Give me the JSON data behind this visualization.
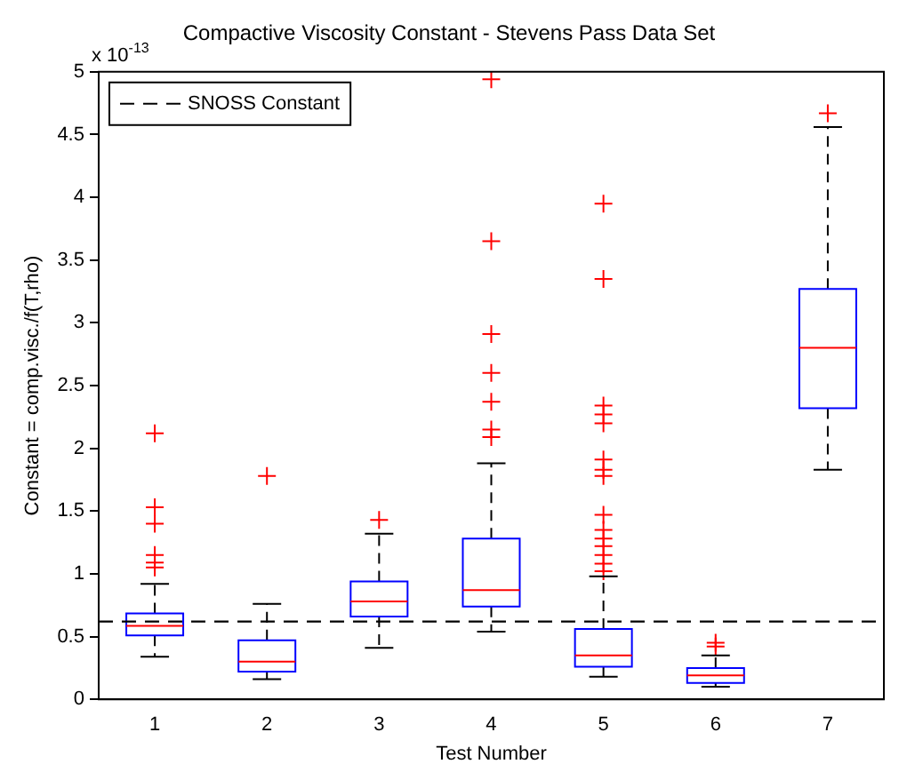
{
  "chart_data": {
    "type": "box",
    "title": "Compactive Viscosity Constant - Stevens Pass Data Set",
    "xlabel": "Test Number",
    "ylabel": "Constant = comp.visc./f(T,rho)",
    "annotations": [
      "x 10$^{-13}$"
    ],
    "categories": [
      "1",
      "2",
      "3",
      "4",
      "5",
      "6",
      "7"
    ],
    "series": [
      {
        "color": "#0000ff",
        "boxes": [
          {
            "low": 0.34,
            "q1": 0.51,
            "median": 0.585,
            "q3": 0.685,
            "high": 0.92,
            "outliers": [
              2.12,
              1.53,
              1.4,
              1.15,
              1.09,
              1.05
            ]
          },
          {
            "low": 0.16,
            "q1": 0.22,
            "median": 0.3,
            "q3": 0.47,
            "high": 0.76,
            "outliers": [
              1.78
            ]
          },
          {
            "low": 0.41,
            "q1": 0.66,
            "median": 0.78,
            "q3": 0.94,
            "high": 1.32,
            "outliers": [
              1.43
            ]
          },
          {
            "low": 0.54,
            "q1": 0.74,
            "median": 0.87,
            "q3": 1.28,
            "high": 1.88,
            "outliers": [
              4.94,
              3.65,
              2.91,
              2.6,
              2.37,
              2.15,
              2.09
            ]
          },
          {
            "low": 0.18,
            "q1": 0.26,
            "median": 0.35,
            "q3": 0.56,
            "high": 0.98,
            "outliers": [
              3.95,
              3.35,
              2.34,
              2.27,
              2.2,
              1.91,
              1.83,
              1.78,
              1.47,
              1.35,
              1.28,
              1.22,
              1.15,
              1.08,
              1.02
            ]
          },
          {
            "low": 0.1,
            "q1": 0.13,
            "median": 0.19,
            "q3": 0.25,
            "high": 0.35,
            "outliers": [
              0.45,
              0.42
            ]
          },
          {
            "low": 1.83,
            "q1": 2.32,
            "median": 2.8,
            "q3": 3.27,
            "high": 4.56,
            "outliers": [
              4.67
            ]
          }
        ]
      }
    ],
    "ylim": [
      0,
      5
    ],
    "yticks": [
      0,
      0.5,
      1,
      1.5,
      2,
      2.5,
      3,
      3.5,
      4,
      4.5,
      5
    ],
    "ref_lines": [
      {
        "axis": "y",
        "value": 0.62,
        "label": "SNOSS Constant",
        "color": "#000000",
        "line_style": "dashed"
      }
    ],
    "legend": "top left",
    "grid": false
  }
}
